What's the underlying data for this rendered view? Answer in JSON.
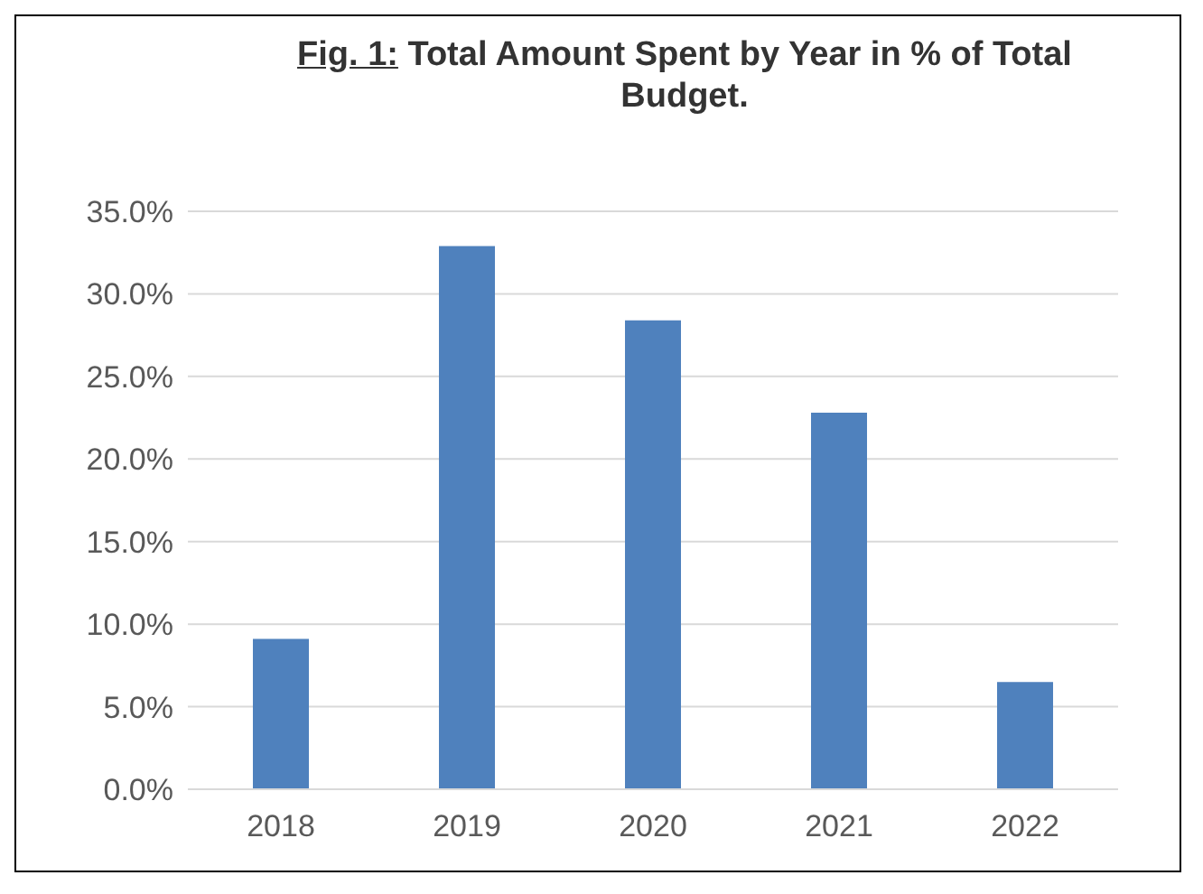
{
  "chart_data": {
    "type": "bar",
    "title": "Fig. 1: Total Amount Spent by Year in % of Total Budget.",
    "categories": [
      "2018",
      "2019",
      "2020",
      "2021",
      "2022"
    ],
    "values": [
      9.1,
      32.9,
      28.4,
      22.8,
      6.5
    ],
    "color": "#4f81bd",
    "ylim": [
      0,
      35
    ],
    "yticks": [
      {
        "value": 0,
        "label": "0.0%"
      },
      {
        "value": 5,
        "label": "5.0%"
      },
      {
        "value": 10,
        "label": "10.0%"
      },
      {
        "value": 15,
        "label": "15.0%"
      },
      {
        "value": 20,
        "label": "20.0%"
      },
      {
        "value": 25,
        "label": "25.0%"
      },
      {
        "value": 30,
        "label": "30.0%"
      },
      {
        "value": 35,
        "label": "35.0%"
      }
    ],
    "grid": "y",
    "legend": false
  }
}
